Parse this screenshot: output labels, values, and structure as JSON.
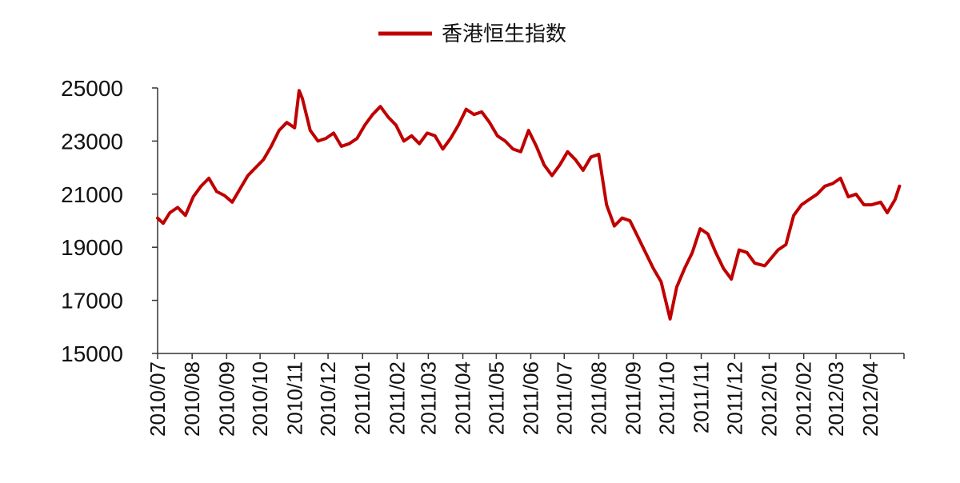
{
  "chart_data": {
    "type": "line",
    "title": "",
    "xlabel": "",
    "ylabel": "",
    "ylim": [
      15000,
      25000
    ],
    "grid": false,
    "legend_position": "top-center",
    "colors": {
      "series": "#c00000",
      "axis": "#333333"
    },
    "yticks": [
      "15000",
      "17000",
      "19000",
      "21000",
      "23000",
      "25000"
    ],
    "xticks": [
      "2010/07",
      "2010/08",
      "2010/09",
      "2010/10",
      "2010/11",
      "2010/12",
      "2011/01",
      "2011/02",
      "2011/03",
      "2011/04",
      "2011/05",
      "2011/06",
      "2011/07",
      "2011/08",
      "2011/09",
      "2011/10",
      "2011/11",
      "2011/12",
      "2012/01",
      "2012/02",
      "2012/03",
      "2012/04"
    ],
    "x_start": "2010/07",
    "x_end": "2012/04",
    "series": [
      {
        "name": "香港恒生指数",
        "x": [
          "2010/07/01",
          "2010/07/06",
          "2010/07/12",
          "2010/07/19",
          "2010/07/26",
          "2010/08/02",
          "2010/08/09",
          "2010/08/16",
          "2010/08/23",
          "2010/08/30",
          "2010/09/06",
          "2010/09/13",
          "2010/09/20",
          "2010/09/27",
          "2010/10/04",
          "2010/10/11",
          "2010/10/18",
          "2010/10/25",
          "2010/11/01",
          "2010/11/05",
          "2010/11/08",
          "2010/11/15",
          "2010/11/22",
          "2010/11/29",
          "2010/12/06",
          "2010/12/13",
          "2010/12/20",
          "2010/12/27",
          "2011/01/03",
          "2011/01/10",
          "2011/01/17",
          "2011/01/24",
          "2011/01/31",
          "2011/02/07",
          "2011/02/14",
          "2011/02/21",
          "2011/02/28",
          "2011/03/07",
          "2011/03/14",
          "2011/03/21",
          "2011/03/28",
          "2011/04/04",
          "2011/04/11",
          "2011/04/18",
          "2011/04/25",
          "2011/05/02",
          "2011/05/09",
          "2011/05/16",
          "2011/05/23",
          "2011/05/30",
          "2011/06/06",
          "2011/06/13",
          "2011/06/20",
          "2011/06/27",
          "2011/07/04",
          "2011/07/11",
          "2011/07/18",
          "2011/07/25",
          "2011/08/01",
          "2011/08/08",
          "2011/08/15",
          "2011/08/22",
          "2011/08/29",
          "2011/09/05",
          "2011/09/12",
          "2011/09/19",
          "2011/09/26",
          "2011/10/04",
          "2011/10/10",
          "2011/10/17",
          "2011/10/24",
          "2011/10/31",
          "2011/11/07",
          "2011/11/14",
          "2011/11/21",
          "2011/11/28",
          "2011/12/05",
          "2011/12/12",
          "2011/12/19",
          "2011/12/28",
          "2012/01/03",
          "2012/01/09",
          "2012/01/16",
          "2012/01/23",
          "2012/01/30",
          "2012/02/06",
          "2012/02/13",
          "2012/02/20",
          "2012/02/27",
          "2012/03/05",
          "2012/03/12",
          "2012/03/19",
          "2012/03/26",
          "2012/04/02",
          "2012/04/10",
          "2012/04/16",
          "2012/04/23",
          "2012/04/27"
        ],
        "values": [
          20100,
          19900,
          20300,
          20500,
          20200,
          20900,
          21300,
          21600,
          21100,
          20950,
          20700,
          21200,
          21700,
          22000,
          22300,
          22800,
          23400,
          23700,
          23500,
          24900,
          24600,
          23400,
          23000,
          23100,
          23300,
          22800,
          22900,
          23100,
          23600,
          24000,
          24300,
          23900,
          23600,
          23000,
          23200,
          22900,
          23300,
          23200,
          22700,
          23100,
          23600,
          24200,
          24000,
          24100,
          23700,
          23200,
          23000,
          22700,
          22600,
          23400,
          22800,
          22100,
          21700,
          22100,
          22600,
          22300,
          21900,
          22400,
          22500,
          20600,
          19800,
          20100,
          20000,
          19400,
          18800,
          18200,
          17700,
          16300,
          17500,
          18200,
          18800,
          19700,
          19500,
          18800,
          18200,
          17800,
          18900,
          18800,
          18400,
          18300,
          18600,
          18900,
          19100,
          20200,
          20600,
          20800,
          21000,
          21300,
          21400,
          21600,
          20900,
          21000,
          20600,
          20600,
          20700,
          20300,
          20800,
          21300
        ]
      }
    ]
  }
}
